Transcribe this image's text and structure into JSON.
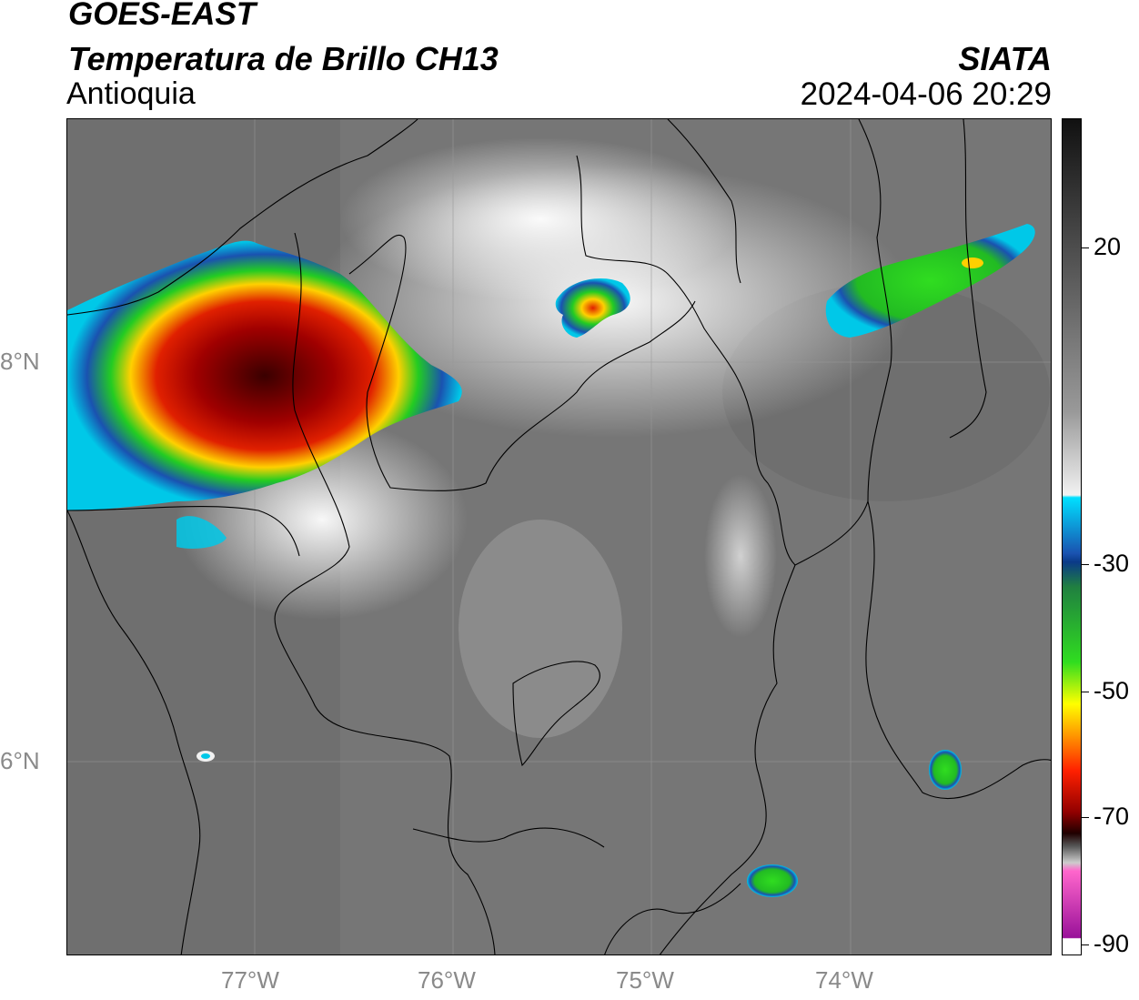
{
  "header": {
    "satellite": "GOES-EAST",
    "product": "Temperatura de Brillo CH13",
    "region": "Antioquia",
    "organization": "SIATA",
    "timestamp": "2024-04-06 20:29"
  },
  "axes": {
    "lon_labels": [
      "77°W",
      "76°W",
      "75°W",
      "74°W"
    ],
    "lat_labels": [
      "8°N",
      "6°N"
    ]
  },
  "colorbar": {
    "labels": [
      "20",
      "-30",
      "-50",
      "-70",
      "-90"
    ]
  },
  "colors": {
    "background_gray": "#777777",
    "cold_red": "#c00000",
    "green": "#22cc22",
    "blue": "#1a52b0",
    "cyan": "#00c8e8"
  }
}
